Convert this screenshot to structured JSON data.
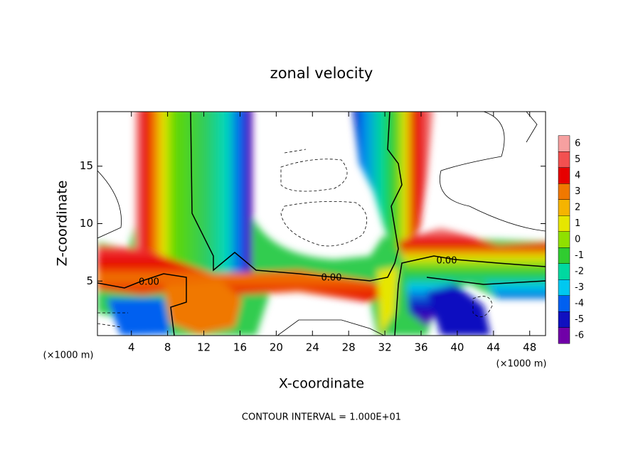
{
  "chart_data": {
    "type": "contour",
    "title": "zonal velocity",
    "x_label": "X-coordinate",
    "y_label": "Z-coordinate",
    "x_unit_label": "(×1000 m)",
    "x_unit_label_right": "(×1000 m)",
    "footer": "CONTOUR INTERVAL = 1.000E+01",
    "contour_labels": [
      "0.00",
      "0.00",
      "0.00"
    ],
    "xlim": [
      0.25,
      49.75
    ],
    "ylim": [
      0.25,
      19.75
    ],
    "xticks": [
      4,
      8,
      12,
      16,
      20,
      24,
      28,
      32,
      36,
      40,
      44,
      48
    ],
    "yticks": [
      5,
      10,
      15
    ],
    "colorbar": {
      "levels": [
        6,
        5,
        4,
        3,
        2,
        1,
        0,
        -1,
        -2,
        -3,
        -4,
        -5,
        -6
      ],
      "colors": [
        "#f6a0a0",
        "#f25050",
        "#e60000",
        "#f07800",
        "#f5b400",
        "#e6e600",
        "#90e000",
        "#30cc30",
        "#00d8a0",
        "#00c8f0",
        "#0060f0",
        "#1010c0",
        "#7000a8"
      ]
    }
  }
}
